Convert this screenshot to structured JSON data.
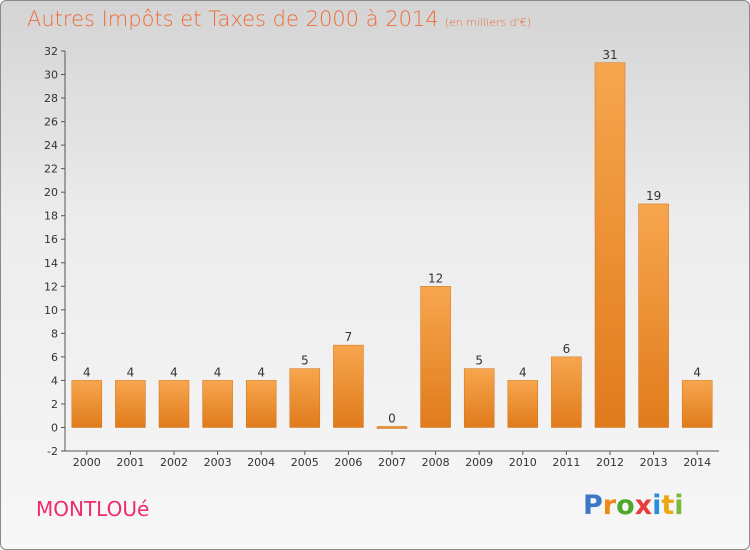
{
  "header": {
    "title": "Autres Impôts et Taxes de 2000 à 2014",
    "unit": "(en milliers d'€)"
  },
  "footer": {
    "city": "MONTLOUé",
    "logo": [
      "P",
      "r",
      "o",
      "x",
      "i",
      "t",
      "i"
    ],
    "logo_colors": [
      "#3b77c5",
      "#f08a16",
      "#4fa82c",
      "#e83c3c",
      "#2c8fd6",
      "#e8a713",
      "#7cb83a"
    ]
  },
  "colors": {
    "bar_light": "#f7a64e",
    "bar_dark": "#e07b1c",
    "title": "#ef6a36",
    "city": "#ef2b6a"
  },
  "chart_data": {
    "type": "bar",
    "categories": [
      "2000",
      "2001",
      "2002",
      "2003",
      "2004",
      "2005",
      "2006",
      "2007",
      "2008",
      "2009",
      "2010",
      "2011",
      "2012",
      "2013",
      "2014"
    ],
    "values": [
      4,
      4,
      4,
      4,
      4,
      5,
      7,
      0,
      12,
      5,
      4,
      6,
      31,
      19,
      4
    ],
    "ylim": [
      -2,
      32
    ],
    "yticks": [
      -2,
      0,
      2,
      4,
      6,
      8,
      10,
      12,
      14,
      16,
      18,
      20,
      22,
      24,
      26,
      28,
      30,
      32
    ],
    "grid": false,
    "data_labels": true
  }
}
